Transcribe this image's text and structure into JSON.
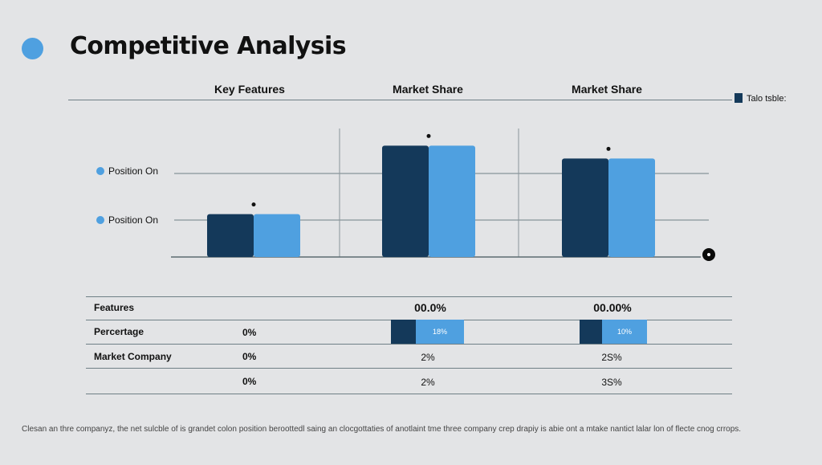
{
  "header": {
    "title": "Competitive Analysis"
  },
  "columns": [
    "Key Features",
    "Market Share",
    "Market Share"
  ],
  "legend": {
    "label": "Talo tsble:"
  },
  "y_labels": [
    "Position On",
    "Position On"
  ],
  "colors": {
    "accent": "#4fa0e0",
    "dark": "#14395a",
    "background": "#e3e4e6"
  },
  "chart_data": {
    "type": "bar",
    "categories": [
      "Key Features",
      "Market Share",
      "Market Share"
    ],
    "series": [
      {
        "values": [
          1.0,
          2.6,
          2.3
        ]
      },
      {
        "values": [
          1.0,
          2.6,
          2.3
        ]
      }
    ],
    "ylim": [
      0,
      3
    ],
    "grid": true
  },
  "table": {
    "header": [
      "Features",
      "",
      "00.0%",
      "00.00%"
    ],
    "rows": [
      {
        "label": "Percertage",
        "cells": [
          "0%",
          "18%",
          "10%"
        ]
      },
      {
        "label": "Market Company",
        "cells": [
          "0%",
          "2%",
          "2S%"
        ]
      },
      {
        "label": "",
        "cells": [
          "0%",
          "2%",
          "3S%"
        ]
      }
    ]
  },
  "footnote": "Clesan an thre companyz, the net sulcble of is grandet colon position beroottedl saing an clocgottaties of anotlaint tme three company crep drapiy is abie ont a mtake nantict lalar lon of flecte cnog crrops."
}
